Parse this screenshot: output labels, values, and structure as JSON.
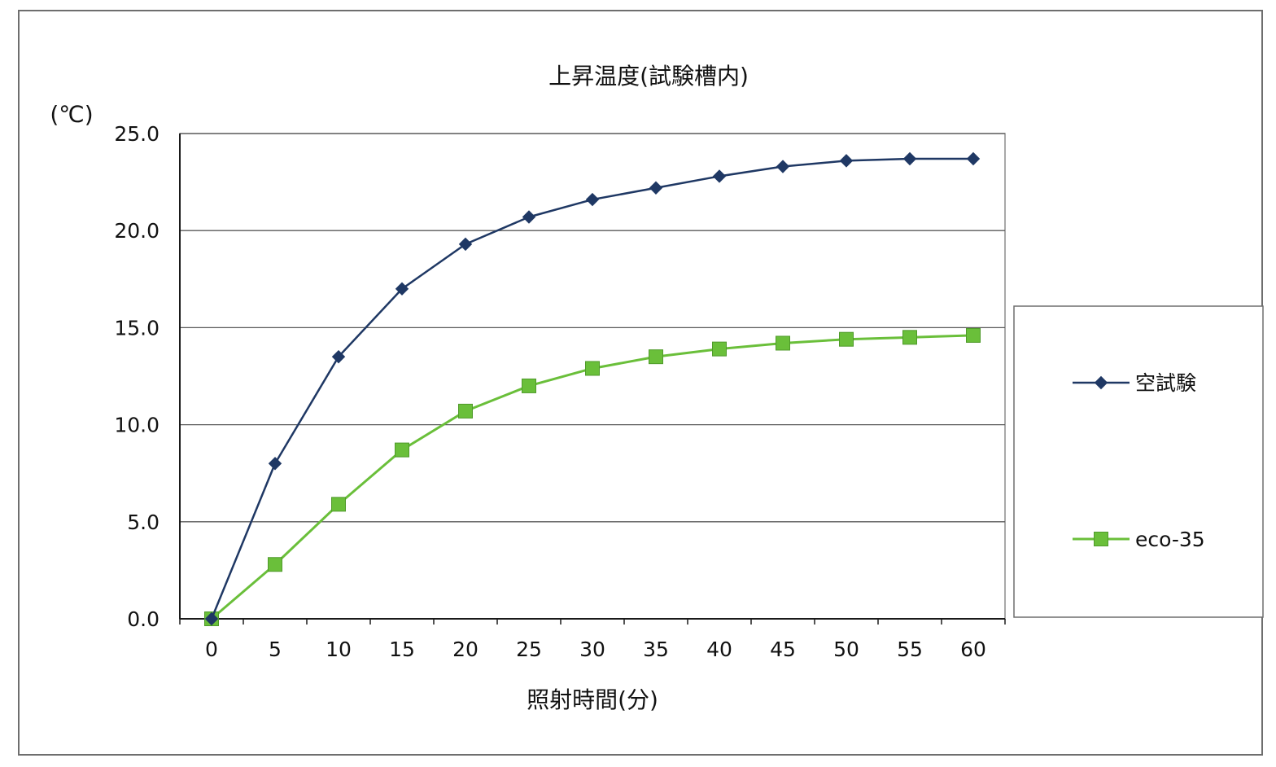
{
  "chart_data": {
    "type": "line",
    "title": "上昇温度(試験槽内)",
    "ylabel": "(℃)",
    "xlabel": "照射時間(分)",
    "x": [
      0,
      5,
      10,
      15,
      20,
      25,
      30,
      35,
      40,
      45,
      50,
      55,
      60
    ],
    "ylim": [
      0,
      25
    ],
    "yticks": [
      0,
      5,
      10,
      15,
      20,
      25
    ],
    "ytick_labels": [
      "0.0",
      "5.0",
      "10.0",
      "15.0",
      "20.0",
      "25.0"
    ],
    "xtick_labels": [
      "0",
      "5",
      "10",
      "15",
      "20",
      "25",
      "30",
      "35",
      "40",
      "45",
      "50",
      "55",
      "60"
    ],
    "grid": "horizontal",
    "legend_position": "right",
    "series": [
      {
        "name": "空試験",
        "color": "#1f3864",
        "marker": "diamond",
        "values": [
          0.0,
          8.0,
          13.5,
          17.0,
          19.3,
          20.7,
          21.6,
          22.2,
          22.8,
          23.3,
          23.6,
          23.7,
          23.7
        ]
      },
      {
        "name": "eco-35",
        "color": "#6abf3a",
        "marker": "square",
        "values": [
          0.0,
          2.8,
          5.9,
          8.7,
          10.7,
          12.0,
          12.9,
          13.5,
          13.9,
          14.2,
          14.4,
          14.5,
          14.6
        ]
      }
    ]
  }
}
